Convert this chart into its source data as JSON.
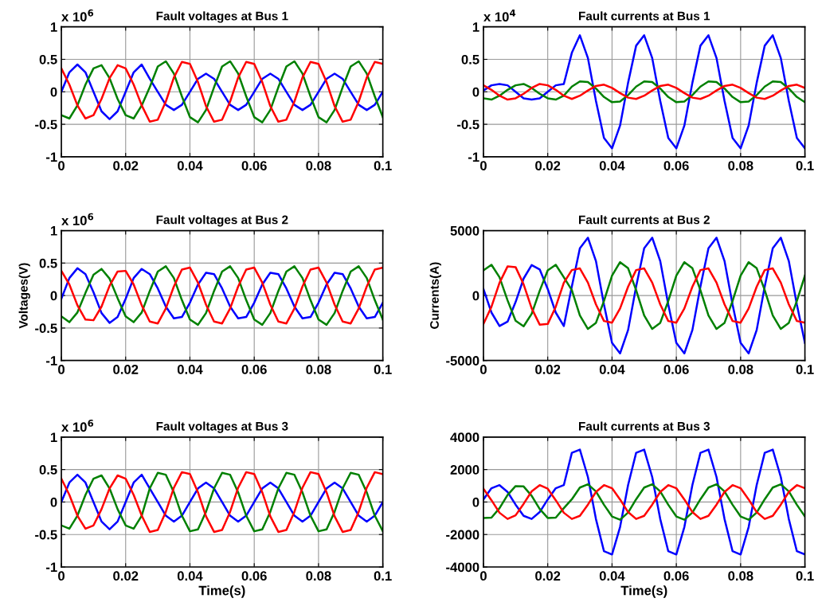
{
  "chart_data": [
    {
      "type": "line",
      "title": "Fault voltages at Bus 1",
      "annotations": [
        "x 10$^{6}$"
      ],
      "grid": true,
      "xlim": [
        0,
        0.1
      ],
      "xticks": [
        0,
        0.02,
        0.04,
        0.06,
        0.08,
        0.1
      ],
      "ylim": [
        -1,
        1
      ],
      "yticks": [
        -1,
        -0.5,
        0,
        0.5,
        1
      ],
      "x": [
        0,
        0.0025,
        0.005,
        0.0075,
        0.01,
        0.0125,
        0.015,
        0.0175,
        0.02,
        0.0225,
        0.025,
        0.0275,
        0.03,
        0.0325,
        0.035,
        0.0375,
        0.04,
        0.0425,
        0.045,
        0.0475,
        0.05,
        0.0525,
        0.055,
        0.0575,
        0.06,
        0.0625,
        0.065,
        0.0675,
        0.07,
        0.0725,
        0.075,
        0.0775,
        0.08,
        0.0825,
        0.085,
        0.0875,
        0.09,
        0.0925,
        0.095,
        0.0975,
        0.1
      ],
      "series": [
        {
          "color": "#0000ff",
          "values": [
            0,
            0.3,
            0.42,
            0.3,
            0,
            -0.3,
            -0.42,
            -0.3,
            0,
            0.3,
            0.42,
            0.2,
            0,
            -0.2,
            -0.28,
            -0.2,
            0,
            0.2,
            0.28,
            0.2,
            0,
            -0.2,
            -0.28,
            -0.2,
            0,
            0.2,
            0.28,
            0.2,
            0,
            -0.2,
            -0.28,
            -0.2,
            0,
            0.2,
            0.28,
            0.2,
            0,
            -0.2,
            -0.28,
            -0.2,
            0
          ]
        },
        {
          "color": "#008000",
          "values": [
            -0.36,
            -0.41,
            -0.21,
            0.11,
            0.36,
            0.41,
            0.21,
            -0.11,
            -0.36,
            -0.41,
            -0.21,
            0.07,
            0.39,
            0.47,
            0.28,
            -0.07,
            -0.39,
            -0.47,
            -0.28,
            0.07,
            0.39,
            0.47,
            0.28,
            -0.07,
            -0.39,
            -0.47,
            -0.28,
            0.07,
            0.39,
            0.47,
            0.28,
            -0.07,
            -0.39,
            -0.47,
            -0.28,
            0.07,
            0.39,
            0.47,
            0.28,
            -0.07,
            -0.39
          ]
        },
        {
          "color": "#ff0000",
          "values": [
            0.36,
            0.11,
            -0.21,
            -0.41,
            -0.36,
            -0.11,
            0.21,
            0.41,
            0.36,
            0.11,
            -0.21,
            -0.46,
            -0.43,
            -0.15,
            0.22,
            0.46,
            0.43,
            0.15,
            -0.22,
            -0.46,
            -0.43,
            -0.15,
            0.22,
            0.46,
            0.43,
            0.15,
            -0.22,
            -0.46,
            -0.43,
            -0.15,
            0.22,
            0.46,
            0.43,
            0.15,
            -0.22,
            -0.46,
            -0.43,
            -0.15,
            0.22,
            0.46,
            0.43
          ]
        }
      ]
    },
    {
      "type": "line",
      "title": "Fault currents at Bus 1",
      "annotations": [
        "x 10$^{4}$"
      ],
      "grid": true,
      "xlim": [
        0,
        0.1
      ],
      "xticks": [
        0,
        0.02,
        0.04,
        0.06,
        0.08,
        0.1
      ],
      "ylim": [
        -1,
        1
      ],
      "yticks": [
        -1,
        -0.5,
        0,
        0.5,
        1
      ],
      "x": [
        0,
        0.0025,
        0.005,
        0.0075,
        0.01,
        0.0125,
        0.015,
        0.0175,
        0.02,
        0.0225,
        0.025,
        0.0275,
        0.03,
        0.0325,
        0.035,
        0.0375,
        0.04,
        0.0425,
        0.045,
        0.0475,
        0.05,
        0.0525,
        0.055,
        0.0575,
        0.06,
        0.0625,
        0.065,
        0.0675,
        0.07,
        0.0725,
        0.075,
        0.0775,
        0.08,
        0.0825,
        0.085,
        0.0875,
        0.09,
        0.0925,
        0.095,
        0.0975,
        0.1
      ],
      "series": [
        {
          "color": "#0000ff",
          "values": [
            0.02,
            0.1,
            0.12,
            0.1,
            0,
            -0.1,
            -0.12,
            -0.1,
            0,
            0.1,
            0.12,
            0.6,
            0.87,
            0.52,
            -0.14,
            -0.71,
            -0.87,
            -0.52,
            0.14,
            0.71,
            0.87,
            0.52,
            -0.14,
            -0.71,
            -0.87,
            -0.52,
            0.14,
            0.71,
            0.87,
            0.52,
            -0.14,
            -0.71,
            -0.87,
            -0.52,
            0.14,
            0.71,
            0.87,
            0.52,
            -0.14,
            -0.71,
            -0.87
          ]
        },
        {
          "color": "#008000",
          "values": [
            -0.1,
            -0.12,
            -0.06,
            0.03,
            0.1,
            0.12,
            0.06,
            -0.03,
            -0.1,
            -0.12,
            -0.06,
            0.08,
            0.16,
            0.15,
            0.05,
            -0.08,
            -0.16,
            -0.15,
            -0.05,
            0.08,
            0.16,
            0.15,
            0.05,
            -0.08,
            -0.16,
            -0.15,
            -0.05,
            0.08,
            0.16,
            0.15,
            0.05,
            -0.08,
            -0.16,
            -0.15,
            -0.05,
            0.08,
            0.16,
            0.15,
            0.05,
            -0.08,
            -0.16
          ]
        },
        {
          "color": "#ff0000",
          "values": [
            0.1,
            0.03,
            -0.06,
            -0.12,
            -0.1,
            -0.03,
            0.06,
            0.12,
            0.1,
            0.03,
            -0.06,
            -0.11,
            -0.06,
            0.02,
            0.09,
            0.11,
            0.06,
            -0.02,
            -0.09,
            -0.11,
            -0.06,
            0.02,
            0.09,
            0.11,
            0.06,
            -0.02,
            -0.09,
            -0.11,
            -0.06,
            0.02,
            0.09,
            0.11,
            0.06,
            -0.02,
            -0.09,
            -0.11,
            -0.06,
            0.02,
            0.09,
            0.11,
            0.06
          ]
        }
      ]
    },
    {
      "type": "line",
      "title": "Fault voltages at Bus 2",
      "ylabel": "Voltages(V)",
      "annotations": [
        "x 10$^{6}$"
      ],
      "grid": true,
      "xlim": [
        0,
        0.1
      ],
      "xticks": [
        0,
        0.02,
        0.04,
        0.06,
        0.08,
        0.1
      ],
      "ylim": [
        -1,
        1
      ],
      "yticks": [
        -1,
        -0.5,
        0,
        0.5,
        1
      ],
      "x": [
        0,
        0.0025,
        0.005,
        0.0075,
        0.01,
        0.0125,
        0.015,
        0.0175,
        0.02,
        0.0225,
        0.025,
        0.0275,
        0.03,
        0.0325,
        0.035,
        0.0375,
        0.04,
        0.0425,
        0.045,
        0.0475,
        0.05,
        0.0525,
        0.055,
        0.0575,
        0.06,
        0.0625,
        0.065,
        0.0675,
        0.07,
        0.0725,
        0.075,
        0.0775,
        0.08,
        0.0825,
        0.085,
        0.0875,
        0.09,
        0.0925,
        0.095,
        0.0975,
        0.1
      ],
      "series": [
        {
          "color": "#0000ff",
          "values": [
            -0.05,
            0.27,
            0.42,
            0.33,
            0.05,
            -0.27,
            -0.42,
            -0.33,
            -0.05,
            0.27,
            0.41,
            0.33,
            0.11,
            -0.17,
            -0.35,
            -0.33,
            -0.11,
            0.17,
            0.35,
            0.33,
            0.11,
            -0.17,
            -0.35,
            -0.33,
            -0.11,
            0.17,
            0.35,
            0.33,
            0.11,
            -0.17,
            -0.35,
            -0.33,
            -0.11,
            0.17,
            0.35,
            0.33,
            0.11,
            -0.17,
            -0.35,
            -0.33,
            -0.11
          ]
        },
        {
          "color": "#008000",
          "values": [
            -0.32,
            -0.41,
            -0.26,
            0.04,
            0.32,
            0.41,
            0.26,
            -0.04,
            -0.32,
            -0.41,
            -0.26,
            0.07,
            0.37,
            0.45,
            0.27,
            -0.07,
            -0.37,
            -0.45,
            -0.27,
            0.07,
            0.37,
            0.45,
            0.27,
            -0.07,
            -0.37,
            -0.45,
            -0.27,
            0.07,
            0.37,
            0.45,
            0.27,
            -0.07,
            -0.37,
            -0.45,
            -0.27,
            0.07,
            0.37,
            0.45,
            0.27,
            -0.07,
            -0.37
          ]
        },
        {
          "color": "#ff0000",
          "values": [
            0.38,
            0.17,
            -0.15,
            -0.37,
            -0.38,
            -0.17,
            0.15,
            0.37,
            0.38,
            0.17,
            -0.15,
            -0.4,
            -0.43,
            -0.2,
            0.14,
            0.4,
            0.43,
            0.2,
            -0.14,
            -0.4,
            -0.43,
            -0.2,
            0.14,
            0.4,
            0.43,
            0.2,
            -0.14,
            -0.4,
            -0.43,
            -0.2,
            0.14,
            0.4,
            0.43,
            0.2,
            -0.14,
            -0.4,
            -0.43,
            -0.2,
            0.14,
            0.4,
            0.43
          ]
        }
      ]
    },
    {
      "type": "line",
      "title": "Fault currents at Bus 2",
      "ylabel": "Currents(A)",
      "grid": true,
      "xlim": [
        0,
        0.1
      ],
      "xticks": [
        0,
        0.02,
        0.04,
        0.06,
        0.08,
        0.1
      ],
      "ylim": [
        -5000,
        5000
      ],
      "yticks": [
        -5000,
        0,
        5000
      ],
      "x": [
        0,
        0.0025,
        0.005,
        0.0075,
        0.01,
        0.0125,
        0.015,
        0.0175,
        0.02,
        0.0225,
        0.025,
        0.0275,
        0.03,
        0.0325,
        0.035,
        0.0375,
        0.04,
        0.0425,
        0.045,
        0.0475,
        0.05,
        0.0525,
        0.055,
        0.0575,
        0.06,
        0.0625,
        0.065,
        0.0675,
        0.07,
        0.0725,
        0.075,
        0.0775,
        0.08,
        0.0825,
        0.085,
        0.0875,
        0.09,
        0.0925,
        0.095,
        0.0975,
        0.1
      ],
      "series": [
        {
          "color": "#0000ff",
          "values": [
            500,
            -1310,
            -2350,
            -2010,
            -500,
            1310,
            2350,
            2010,
            500,
            -1310,
            -2350,
            700,
            3640,
            4450,
            2650,
            -700,
            -3640,
            -4450,
            -2650,
            700,
            3640,
            4450,
            2650,
            -700,
            -3640,
            -4450,
            -2650,
            700,
            3640,
            4450,
            2650,
            -700,
            -3640,
            -4450,
            -2650,
            700,
            3640,
            4450,
            2650,
            -700,
            -3640
          ]
        },
        {
          "color": "#008000",
          "values": [
            1940,
            2370,
            1410,
            -370,
            -1940,
            -2370,
            -1410,
            370,
            1940,
            2370,
            1410,
            410,
            -1530,
            -2570,
            -2100,
            -410,
            1530,
            2570,
            2100,
            410,
            -1530,
            -2570,
            -2100,
            -410,
            1530,
            2570,
            2100,
            410,
            -1530,
            -2570,
            -2100,
            -410,
            1530,
            2570,
            2100,
            410,
            -1530,
            -2570,
            -2100,
            -410,
            1530
          ]
        },
        {
          "color": "#ff0000",
          "values": [
            -2190,
            -860,
            980,
            2240,
            2190,
            860,
            -980,
            -2240,
            -2190,
            -860,
            980,
            1960,
            2090,
            1000,
            -680,
            -1960,
            -2090,
            -1000,
            680,
            1960,
            2090,
            1000,
            -680,
            -1960,
            -2090,
            -1000,
            680,
            1960,
            2090,
            1000,
            -680,
            -1960,
            -2090,
            -1000,
            680,
            1960,
            2090,
            1000,
            -680,
            -1960,
            -2090
          ]
        }
      ]
    },
    {
      "type": "line",
      "title": "Fault voltages at Bus 3",
      "xlabel": "Time(s)",
      "annotations": [
        "x 10$^{6}$"
      ],
      "grid": true,
      "xlim": [
        0,
        0.1
      ],
      "xticks": [
        0,
        0.02,
        0.04,
        0.06,
        0.08,
        0.1
      ],
      "ylim": [
        -1,
        1
      ],
      "yticks": [
        -1,
        -0.5,
        0,
        0.5,
        1
      ],
      "x": [
        0,
        0.0025,
        0.005,
        0.0075,
        0.01,
        0.0125,
        0.015,
        0.0175,
        0.02,
        0.0225,
        0.025,
        0.0275,
        0.03,
        0.0325,
        0.035,
        0.0375,
        0.04,
        0.0425,
        0.045,
        0.0475,
        0.05,
        0.0525,
        0.055,
        0.0575,
        0.06,
        0.0625,
        0.065,
        0.0675,
        0.07,
        0.0725,
        0.075,
        0.0775,
        0.08,
        0.0825,
        0.085,
        0.0875,
        0.09,
        0.0925,
        0.095,
        0.0975,
        0.1
      ],
      "series": [
        {
          "color": "#0000ff",
          "values": [
            0,
            0.3,
            0.42,
            0.3,
            0,
            -0.3,
            -0.42,
            -0.3,
            0,
            0.3,
            0.42,
            0.21,
            0,
            -0.21,
            -0.3,
            -0.21,
            0,
            0.21,
            0.3,
            0.21,
            0,
            -0.21,
            -0.3,
            -0.21,
            0,
            0.21,
            0.3,
            0.21,
            0,
            -0.21,
            -0.3,
            -0.21,
            0,
            0.21,
            0.3,
            0.21,
            0,
            -0.21,
            -0.3,
            -0.21,
            0
          ]
        },
        {
          "color": "#008000",
          "values": [
            -0.36,
            -0.41,
            -0.21,
            0.11,
            0.36,
            0.41,
            0.21,
            -0.11,
            -0.36,
            -0.41,
            -0.21,
            0.21,
            0.45,
            0.42,
            0.15,
            -0.21,
            -0.45,
            -0.42,
            -0.15,
            0.21,
            0.45,
            0.42,
            0.15,
            -0.21,
            -0.45,
            -0.42,
            -0.15,
            0.21,
            0.45,
            0.42,
            0.15,
            -0.21,
            -0.45,
            -0.42,
            -0.15,
            0.21,
            0.45,
            0.42,
            0.15,
            -0.21,
            -0.45
          ]
        },
        {
          "color": "#ff0000",
          "values": [
            0.36,
            0.11,
            -0.21,
            -0.41,
            -0.36,
            -0.11,
            0.21,
            0.41,
            0.36,
            0.11,
            -0.21,
            -0.46,
            -0.43,
            -0.15,
            0.22,
            0.46,
            0.43,
            0.15,
            -0.22,
            -0.46,
            -0.43,
            -0.15,
            0.22,
            0.46,
            0.43,
            0.15,
            -0.22,
            -0.46,
            -0.43,
            -0.15,
            0.22,
            0.46,
            0.43,
            0.15,
            -0.22,
            -0.46,
            -0.43,
            -0.15,
            0.22,
            0.46,
            0.43
          ]
        }
      ]
    },
    {
      "type": "line",
      "title": "Fault currents at Bus 3",
      "xlabel": "Time(s)",
      "grid": true,
      "xlim": [
        0,
        0.1
      ],
      "xticks": [
        0,
        0.02,
        0.04,
        0.06,
        0.08,
        0.1
      ],
      "ylim": [
        -4000,
        4000
      ],
      "yticks": [
        -4000,
        -2000,
        0,
        2000,
        4000
      ],
      "x": [
        0,
        0.0025,
        0.005,
        0.0075,
        0.01,
        0.0125,
        0.015,
        0.0175,
        0.02,
        0.0225,
        0.025,
        0.0275,
        0.03,
        0.0325,
        0.035,
        0.0375,
        0.04,
        0.0425,
        0.045,
        0.0475,
        0.05,
        0.0525,
        0.055,
        0.0575,
        0.06,
        0.0625,
        0.065,
        0.0675,
        0.07,
        0.0725,
        0.075,
        0.0775,
        0.08,
        0.0825,
        0.085,
        0.0875,
        0.09,
        0.0925,
        0.095,
        0.0975,
        0.1
      ],
      "series": [
        {
          "color": "#0000ff",
          "values": [
            160,
            850,
            1040,
            620,
            -160,
            -850,
            -1040,
            -620,
            160,
            850,
            1040,
            3030,
            3230,
            1540,
            -1050,
            -3030,
            -3230,
            -1540,
            1050,
            3030,
            3230,
            1540,
            -1050,
            -3030,
            -3230,
            -1540,
            1050,
            3030,
            3230,
            1540,
            -1050,
            -3030,
            -3230,
            -1540,
            1050,
            3030,
            3230,
            1540,
            -1050,
            -3030,
            -3230
          ]
        },
        {
          "color": "#008000",
          "values": [
            -980,
            -960,
            -380,
            430,
            980,
            960,
            380,
            -430,
            -980,
            -960,
            -380,
            170,
            890,
            1090,
            650,
            -170,
            -890,
            -1090,
            -650,
            170,
            890,
            1090,
            650,
            -170,
            -890,
            -1090,
            -650,
            170,
            890,
            1090,
            650,
            -170,
            -890,
            -1090,
            -650,
            170,
            890,
            1090,
            650,
            -170,
            -890
          ]
        },
        {
          "color": "#ff0000",
          "values": [
            820,
            110,
            -660,
            -1040,
            -820,
            -110,
            660,
            1040,
            820,
            110,
            -660,
            -1040,
            -850,
            -160,
            620,
            1040,
            850,
            160,
            -620,
            -1040,
            -850,
            -160,
            620,
            1040,
            850,
            160,
            -620,
            -1040,
            -850,
            -160,
            620,
            1040,
            850,
            160,
            -620,
            -1040,
            -850,
            -160,
            620,
            1040,
            850
          ]
        }
      ]
    }
  ]
}
